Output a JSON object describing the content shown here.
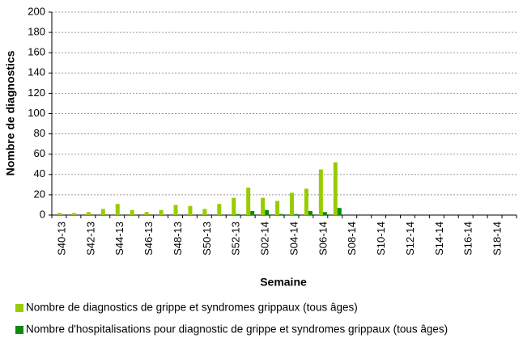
{
  "chart_data": {
    "type": "bar",
    "y_label": "Nombre de diagnostics",
    "x_label": "Semaine",
    "categories": [
      "S40-13",
      null,
      "S42-13",
      null,
      "S44-13",
      null,
      "S46-13",
      null,
      "S48-13",
      null,
      "S50-13",
      null,
      "S52-13",
      null,
      "S02-14",
      null,
      "S04-14",
      null,
      "S06-14",
      null,
      "S08-14",
      null,
      "S10-14",
      null,
      "S12-14",
      null,
      "S14-14",
      null,
      "S16-14",
      null,
      "S18-14",
      null
    ],
    "series": [
      {
        "name": "Nombre de diagnostics de grippe et syndromes grippaux (tous âges)",
        "color": "#99cc00",
        "values": [
          2,
          2,
          3,
          6,
          11,
          5,
          3,
          5,
          10,
          9,
          6,
          11,
          17,
          27,
          17,
          14,
          22,
          26,
          45,
          52,
          null,
          null,
          null,
          null,
          null,
          null,
          null,
          null,
          null,
          null,
          null,
          null
        ]
      },
      {
        "name": "Nombre d'hospitalisations pour diagnostic de grippe et syndromes grippaux (tous âges)",
        "color": "#0f8a0f",
        "values": [
          0,
          0,
          0,
          0,
          0,
          0,
          0,
          0,
          0,
          0,
          0,
          0,
          1,
          4,
          5,
          1,
          1,
          4,
          3,
          7,
          null,
          null,
          null,
          null,
          null,
          null,
          null,
          null,
          null,
          null,
          null,
          null
        ]
      }
    ],
    "ylim": [
      0,
      200
    ],
    "yticks": [
      0,
      20,
      40,
      60,
      80,
      100,
      120,
      140,
      160,
      180,
      200
    ],
    "grid": true
  }
}
